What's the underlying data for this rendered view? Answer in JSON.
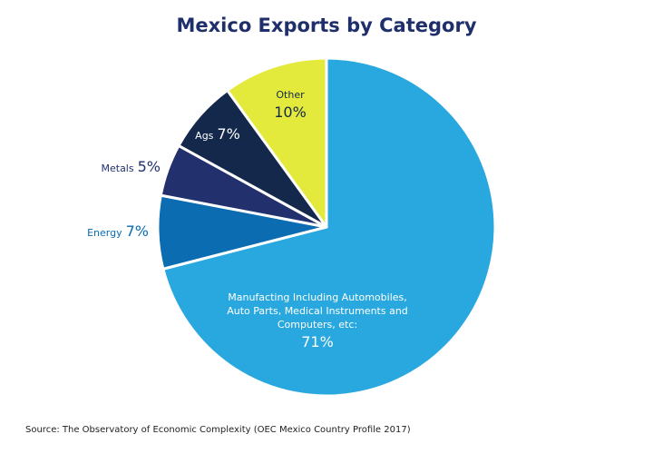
{
  "chart_data": {
    "type": "pie",
    "title": "Mexico Exports by Category",
    "categories": [
      "Manufacting Including Automobiles, Auto Parts, Medical Instruments and Computers, etc:",
      "Energy",
      "Metals",
      "Ags",
      "Other"
    ],
    "values": [
      71,
      7,
      5,
      7,
      10
    ],
    "value_labels": [
      "71%",
      "7%",
      "5%",
      "7%",
      "10%"
    ],
    "colors": [
      "#29a8e0",
      "#0b6cb2",
      "#22306e",
      "#13284a",
      "#e3ea3b"
    ],
    "source": "Source: The Observatory of Economic Complexity (OEC Mexico Country Profile 2017)"
  }
}
